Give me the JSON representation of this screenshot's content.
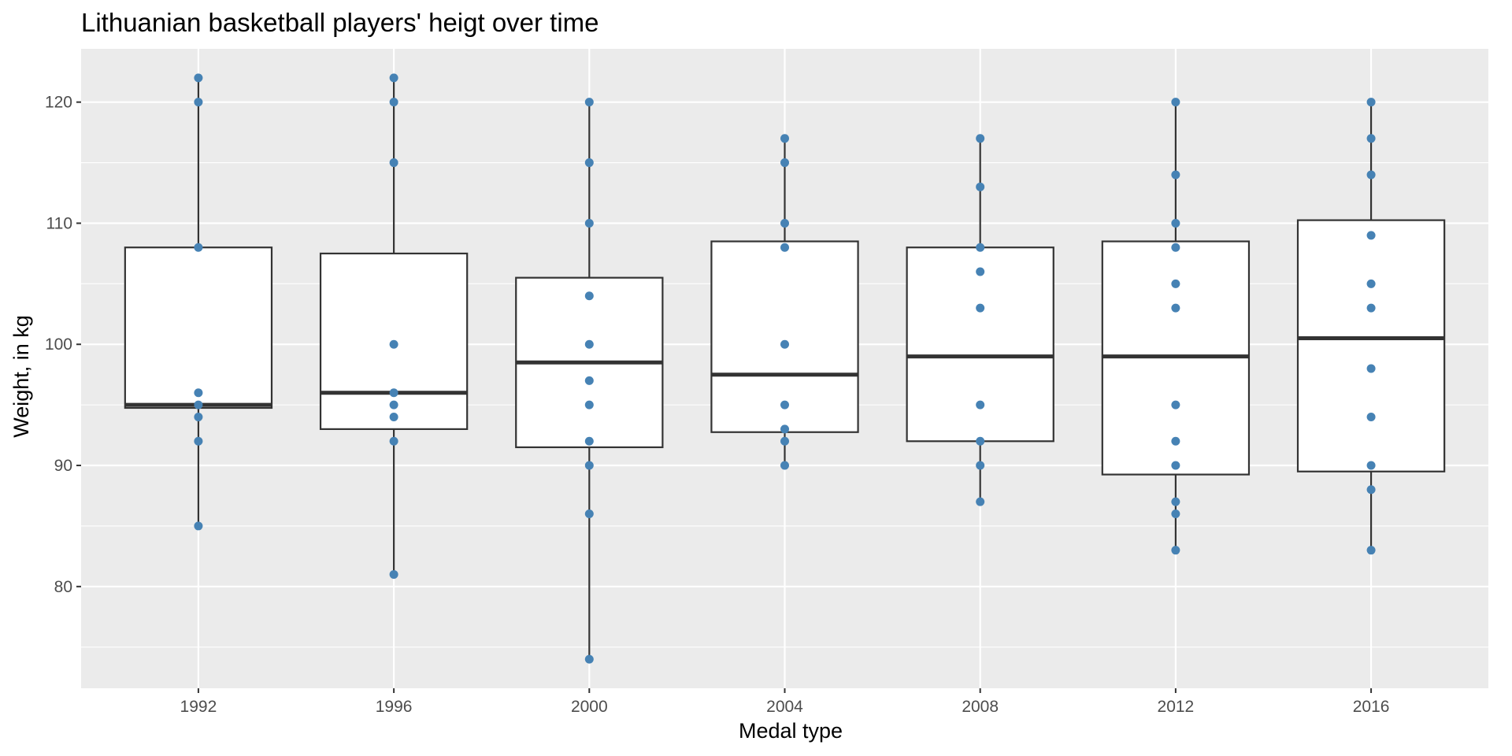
{
  "chart_data": {
    "type": "box",
    "title": "Lithuanian basketball players' heigt over time",
    "xlabel": "Medal type",
    "ylabel": "Weight, in kg",
    "ylim": [
      71.6,
      124.4
    ],
    "y_ticks": [
      80,
      90,
      100,
      110,
      120
    ],
    "grid": true,
    "legend": "none",
    "colors": {
      "panel": "#ebebeb",
      "grid": "#ffffff",
      "box_fill": "#ffffff",
      "box_line": "#333333",
      "point": "#4682b4",
      "tick_label": "#4d4d4d"
    },
    "categories": [
      "1992",
      "1996",
      "2000",
      "2004",
      "2008",
      "2012",
      "2016"
    ],
    "boxes": [
      {
        "category": "1992",
        "min": 85,
        "q1": 94.75,
        "median": 95,
        "q3": 108,
        "max": 122
      },
      {
        "category": "1996",
        "min": 81,
        "q1": 93,
        "median": 96,
        "q3": 107.5,
        "max": 122
      },
      {
        "category": "2000",
        "min": 74,
        "q1": 91.5,
        "median": 98.5,
        "q3": 105.5,
        "max": 120
      },
      {
        "category": "2004",
        "min": 90,
        "q1": 92.75,
        "median": 97.5,
        "q3": 108.5,
        "max": 117
      },
      {
        "category": "2008",
        "min": 87,
        "q1": 92,
        "median": 99,
        "q3": 108,
        "max": 117
      },
      {
        "category": "2012",
        "min": 83,
        "q1": 89.25,
        "median": 99,
        "q3": 108.5,
        "max": 120
      },
      {
        "category": "2016",
        "min": 83,
        "q1": 89.5,
        "median": 100.5,
        "q3": 110.25,
        "max": 120
      }
    ],
    "points": [
      {
        "category": "1992",
        "values": [
          122,
          120,
          108,
          96,
          95,
          94,
          92,
          85
        ]
      },
      {
        "category": "1996",
        "values": [
          122,
          120,
          115,
          100,
          96,
          95,
          94,
          92,
          81
        ]
      },
      {
        "category": "2000",
        "values": [
          120,
          115,
          110,
          104,
          100,
          97,
          95,
          92,
          90,
          86,
          74
        ]
      },
      {
        "category": "2004",
        "values": [
          117,
          115,
          110,
          108,
          100,
          95,
          93,
          92,
          90
        ]
      },
      {
        "category": "2008",
        "values": [
          117,
          113,
          108,
          106,
          103,
          95,
          92,
          90,
          87
        ]
      },
      {
        "category": "2012",
        "values": [
          120,
          114,
          110,
          108,
          105,
          103,
          95,
          92,
          90,
          87,
          86,
          83
        ]
      },
      {
        "category": "2016",
        "values": [
          120,
          117,
          114,
          109,
          105,
          103,
          98,
          94,
          90,
          88,
          83
        ]
      }
    ]
  }
}
